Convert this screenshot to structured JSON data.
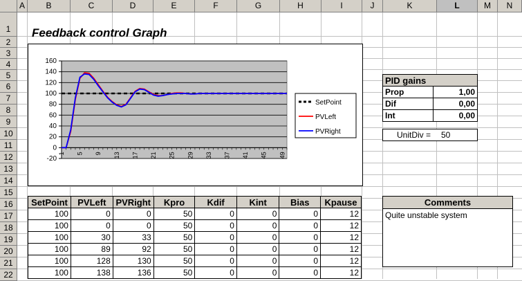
{
  "columns": [
    "A",
    "B",
    "C",
    "D",
    "E",
    "F",
    "G",
    "H",
    "I",
    "J",
    "K",
    "L",
    "M",
    "N"
  ],
  "selected_column": "L",
  "rows": [
    "1",
    "2",
    "3",
    "4",
    "5",
    "6",
    "7",
    "8",
    "9",
    "10",
    "11",
    "12",
    "13",
    "14",
    "15",
    "16",
    "17",
    "18",
    "19",
    "20",
    "21",
    "22"
  ],
  "title": "Feedback control Graph",
  "chart_data": {
    "type": "line",
    "ylim": [
      -20,
      160
    ],
    "yticks": [
      -20,
      0,
      20,
      40,
      60,
      80,
      100,
      120,
      140,
      160
    ],
    "xticks": [
      "1",
      "5",
      "9",
      "13",
      "17",
      "21",
      "25",
      "29",
      "33",
      "37",
      "41",
      "45",
      "49"
    ],
    "grid": true,
    "legend": "right",
    "series": [
      {
        "name": "SetPoint",
        "color": "#000000",
        "dash": true,
        "values": [
          100,
          100,
          100,
          100,
          100,
          100,
          100,
          100,
          100,
          100,
          100,
          100,
          100,
          100,
          100,
          100,
          100,
          100,
          100,
          100,
          100,
          100,
          100,
          100,
          100,
          100,
          100,
          100,
          100,
          100,
          100,
          100,
          100,
          100,
          100,
          100,
          100,
          100,
          100,
          100,
          100,
          100,
          100,
          100,
          100,
          100,
          100,
          100,
          100,
          100
        ]
      },
      {
        "name": "PVLeft",
        "color": "#ff0000",
        "values": [
          0,
          0,
          30,
          89,
          128,
          138,
          137,
          128,
          116,
          104,
          93,
          85,
          79,
          76,
          80,
          92,
          104,
          109,
          108,
          103,
          98,
          96,
          96,
          98,
          100,
          101,
          101,
          100,
          99,
          99,
          100,
          100,
          100,
          100,
          100,
          100,
          100,
          100,
          100,
          100,
          100,
          100,
          100,
          100,
          100,
          100,
          100,
          100,
          100,
          100
        ]
      },
      {
        "name": "PVRight",
        "color": "#0000ff",
        "values": [
          0,
          0,
          33,
          92,
          130,
          136,
          135,
          126,
          114,
          103,
          92,
          84,
          78,
          75,
          79,
          91,
          103,
          108,
          107,
          102,
          97,
          95,
          96,
          98,
          99,
          100,
          100,
          100,
          99,
          99,
          100,
          100,
          100,
          100,
          100,
          100,
          100,
          100,
          100,
          100,
          100,
          100,
          100,
          100,
          100,
          100,
          100,
          100,
          100,
          100
        ]
      }
    ]
  },
  "pid": {
    "title": "PID gains",
    "rows": [
      {
        "label": "Prop",
        "value": "1,00"
      },
      {
        "label": "Dif",
        "value": "0,00"
      },
      {
        "label": "Int",
        "value": "0,00"
      }
    ]
  },
  "unitdiv": {
    "label": "UnitDiv =",
    "value": "50"
  },
  "table": {
    "headers": [
      "SetPoint",
      "PVLeft",
      "PVRight",
      "Kpro",
      "Kdif",
      "Kint",
      "Bias",
      "Kpause"
    ],
    "rows": [
      [
        "100",
        "0",
        "0",
        "50",
        "0",
        "0",
        "0",
        "12"
      ],
      [
        "100",
        "0",
        "0",
        "50",
        "0",
        "0",
        "0",
        "12"
      ],
      [
        "100",
        "30",
        "33",
        "50",
        "0",
        "0",
        "0",
        "12"
      ],
      [
        "100",
        "89",
        "92",
        "50",
        "0",
        "0",
        "0",
        "12"
      ],
      [
        "100",
        "128",
        "130",
        "50",
        "0",
        "0",
        "0",
        "12"
      ],
      [
        "100",
        "138",
        "136",
        "50",
        "0",
        "0",
        "0",
        "12"
      ]
    ]
  },
  "comments": {
    "title": "Comments",
    "text": "Quite unstable system"
  }
}
